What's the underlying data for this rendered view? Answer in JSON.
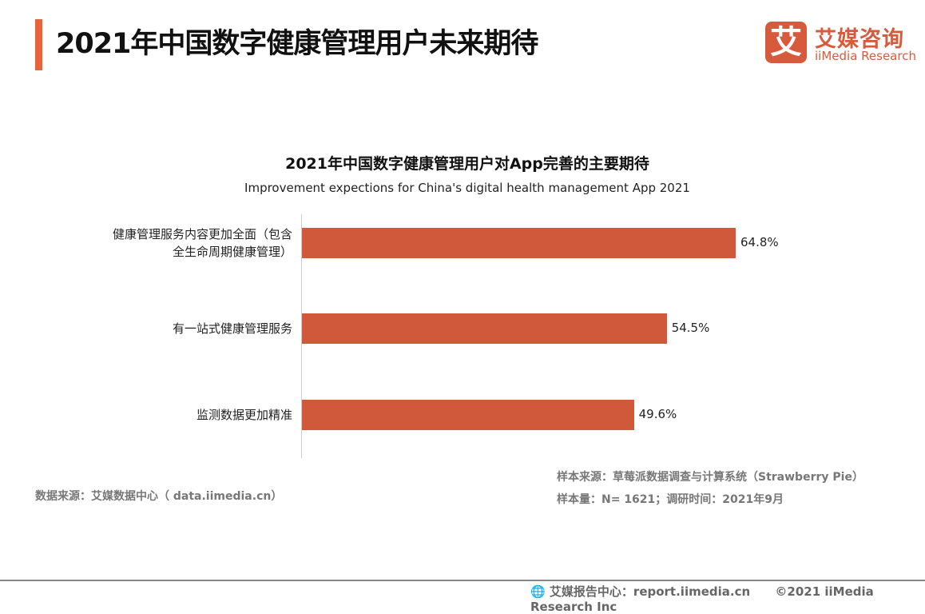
{
  "header": {
    "title": "2021年中国数字健康管理用户未来期待",
    "accent_color": "#e8623a"
  },
  "logo": {
    "mark": "艾",
    "cn": "艾媒咨询",
    "en": "iiMedia Research",
    "color": "#d85a3c"
  },
  "chart_data": {
    "type": "bar",
    "orientation": "horizontal",
    "title": "2021年中国数字健康管理用户对App完善的主要期待",
    "subtitle": "Improvement expections for China's digital health management App 2021",
    "categories": [
      "健康管理服务内容更加全面（包含全生命周期健康管理）",
      "有一站式健康管理服务",
      "监测数据更加精准"
    ],
    "values": [
      64.8,
      54.5,
      49.6
    ],
    "labels": [
      "64.8%",
      "54.5%",
      "49.6%"
    ],
    "unit": "%",
    "bar_color": "#d0593c",
    "xlim": [
      0,
      70
    ],
    "grid": false
  },
  "notes": {
    "source_left": "数据来源：艾媒数据中心（ data.iimedia.cn）",
    "sample_source": "样本来源：草莓派数据调查与计算系统（Strawberry Pie）",
    "sample_size": "样本量：N= 1621；调研时间：2021年9月"
  },
  "footer": {
    "icon": "globe-cursor-icon",
    "report": "艾媒报告中心：report.iimedia.cn",
    "copyright": "©2021  iiMedia Research  Inc"
  }
}
